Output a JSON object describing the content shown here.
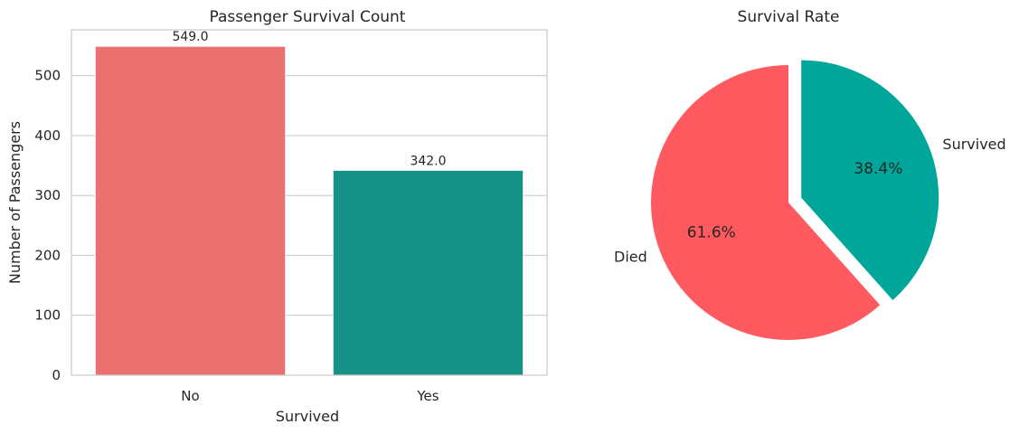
{
  "chart_data": [
    {
      "type": "bar",
      "title": "Passenger Survival Count",
      "xlabel": "Survived",
      "ylabel": "Number of Passengers",
      "categories": [
        "No",
        "Yes"
      ],
      "values": [
        549,
        342
      ],
      "value_labels": [
        "549.0",
        "342.0"
      ],
      "colors": [
        "#eb7070",
        "#159187"
      ],
      "ylim": [
        0,
        576.45
      ],
      "yticks": [
        0,
        100,
        200,
        300,
        400,
        500
      ],
      "grid": "horizontal"
    },
    {
      "type": "pie",
      "title": "Survival Rate",
      "labels": [
        "Died",
        "Survived"
      ],
      "values": [
        61.6,
        38.4
      ],
      "pct_labels": [
        "61.6%",
        "38.4%"
      ],
      "colors": [
        "#ff5a5f",
        "#00a699"
      ],
      "explode": [
        0,
        0.1
      ],
      "start_angle_deg": 90
    }
  ]
}
